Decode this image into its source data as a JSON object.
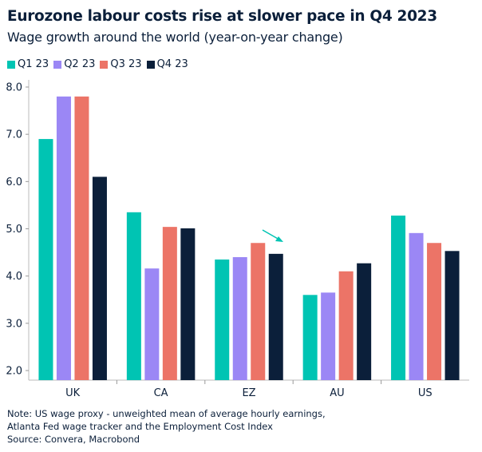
{
  "title": "Eurozone labour costs rise at slower pace in Q4 2023",
  "subtitle": "Wage growth around the world (year-on-year change)",
  "notes": [
    "Note: US wage proxy - unweighted mean of average hourly earnings,",
    "Atlanta Fed wage tracker and the Employment Cost Index",
    "Source: Convera, Macrobond"
  ],
  "chart_data": {
    "type": "bar",
    "categories": [
      "UK",
      "CA",
      "EZ",
      "AU",
      "US"
    ],
    "series": [
      {
        "name": "Q1 23",
        "color": "#00c4b3",
        "values": [
          6.9,
          5.35,
          4.35,
          3.6,
          5.28
        ]
      },
      {
        "name": "Q2 23",
        "color": "#9b87f5",
        "values": [
          7.8,
          4.16,
          4.4,
          3.65,
          4.91
        ]
      },
      {
        "name": "Q3 23",
        "color": "#ec7467",
        "values": [
          7.8,
          5.04,
          4.7,
          4.1,
          4.7
        ]
      },
      {
        "name": "Q4 23",
        "color": "#0b1f3a",
        "values": [
          6.1,
          5.01,
          4.47,
          4.27,
          4.53
        ]
      }
    ],
    "ylim": [
      2.0,
      8.0
    ],
    "yticks": [
      "2.0",
      "3.0",
      "4.0",
      "5.0",
      "6.0",
      "7.0",
      "8.0"
    ],
    "grid": false,
    "legend": "top-left",
    "annotation": {
      "type": "arrow",
      "category": "EZ",
      "color": "#00c4b3"
    }
  }
}
